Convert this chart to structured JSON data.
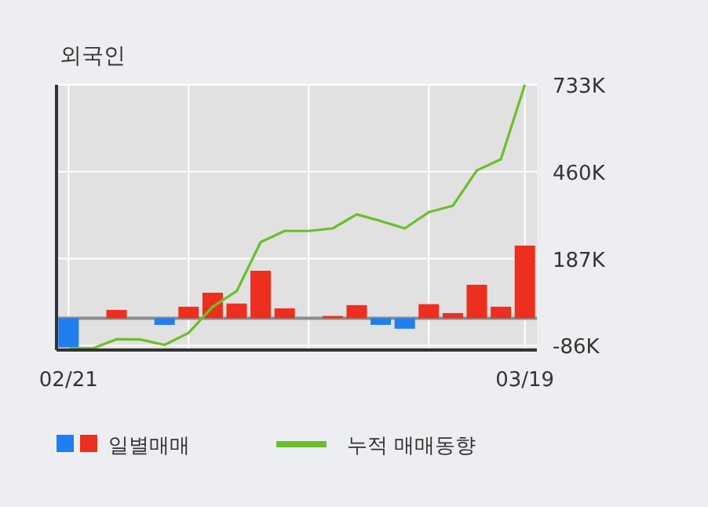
{
  "chart_data": {
    "type": "bar",
    "title": "외국인",
    "categories": [
      "02/21",
      null,
      null,
      null,
      null,
      null,
      null,
      null,
      null,
      null,
      null,
      null,
      null,
      null,
      null,
      null,
      null,
      null,
      null,
      "03/19"
    ],
    "series": [
      {
        "name": "일별매매",
        "values": [
          -92,
          0,
          26,
          0,
          -21,
          36,
          80,
          46,
          149,
          31,
          0,
          7,
          41,
          -21,
          -33,
          44,
          16,
          105,
          36,
          228
        ],
        "colors": [
          "#1f7ff0",
          "#ee2e1e",
          "#ee2e1e",
          "#ee2e1e",
          "#1f7ff0",
          "#ee2e1e",
          "#ee2e1e",
          "#ee2e1e",
          "#ee2e1e",
          "#ee2e1e",
          "#ee2e1e",
          "#ee2e1e",
          "#ee2e1e",
          "#1f7ff0",
          "#1f7ff0",
          "#ee2e1e",
          "#ee2e1e",
          "#ee2e1e",
          "#ee2e1e",
          "#ee2e1e"
        ]
      },
      {
        "name": "누적 매매동향",
        "type": "line",
        "color": "#6cbf2c",
        "values": [
          -95,
          -95,
          -66,
          -67,
          -84,
          -46,
          36,
          85,
          239,
          274,
          274,
          282,
          326,
          305,
          282,
          333,
          353,
          464,
          499,
          733
        ]
      }
    ],
    "ylim": [
      -100,
      733
    ],
    "yticks": [
      {
        "value": 733,
        "label": "733K"
      },
      {
        "value": 460,
        "label": "460K"
      },
      {
        "value": 187,
        "label": "187K"
      },
      {
        "value": -86,
        "label": "-86K"
      }
    ],
    "ref_lines": [
      {
        "axis": "y",
        "value": 0,
        "color": "#8c8c8c"
      }
    ],
    "grid": true,
    "legend": "bottom"
  }
}
